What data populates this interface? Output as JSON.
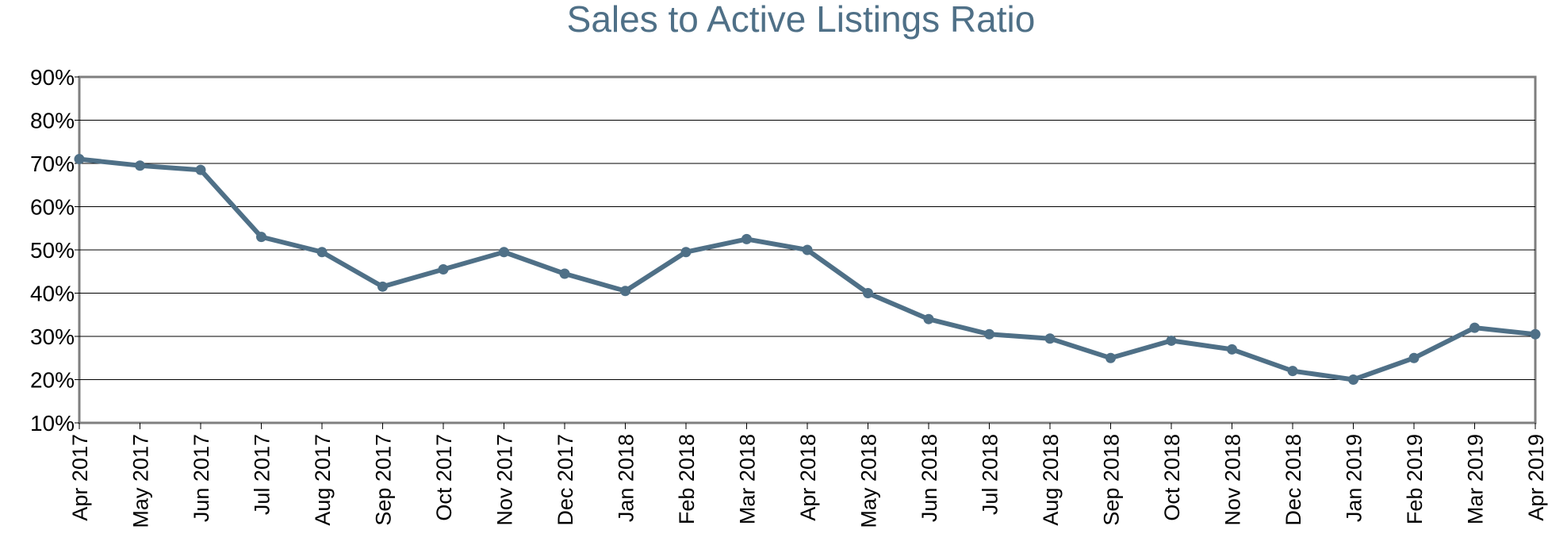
{
  "chart_data": {
    "type": "line",
    "title": "Sales to Active Listings Ratio",
    "xlabel": "",
    "ylabel": "",
    "ylim": [
      10,
      90
    ],
    "yticks": [
      "90%",
      "80%",
      "70%",
      "60%",
      "50%",
      "40%",
      "30%",
      "20%",
      "10%"
    ],
    "grid": true,
    "legend": "none",
    "categories": [
      "Apr 2017",
      "May 2017",
      "Jun 2017",
      "Jul 2017",
      "Aug 2017",
      "Sep 2017",
      "Oct 2017",
      "Nov 2017",
      "Dec 2017",
      "Jan 2018",
      "Feb 2018",
      "Mar 2018",
      "Apr 2018",
      "May 2018",
      "Jun 2018",
      "Jul 2018",
      "Aug 2018",
      "Sep 2018",
      "Oct 2018",
      "Nov 2018",
      "Dec 2018",
      "Jan 2019",
      "Feb 2019",
      "Mar 2019",
      "Apr 2019"
    ],
    "series": [
      {
        "values": [
          71,
          69.5,
          68.5,
          53,
          49.5,
          41.5,
          45.5,
          49.5,
          44.5,
          40.5,
          49.5,
          52.5,
          50,
          40,
          34,
          30.5,
          29.5,
          25,
          29,
          27,
          22,
          20,
          25,
          32,
          30.5
        ]
      }
    ],
    "colors": {
      "line": "#4f7087",
      "title": "#4f7087",
      "grid": "#000000",
      "frame": "#7f7f7f"
    }
  }
}
